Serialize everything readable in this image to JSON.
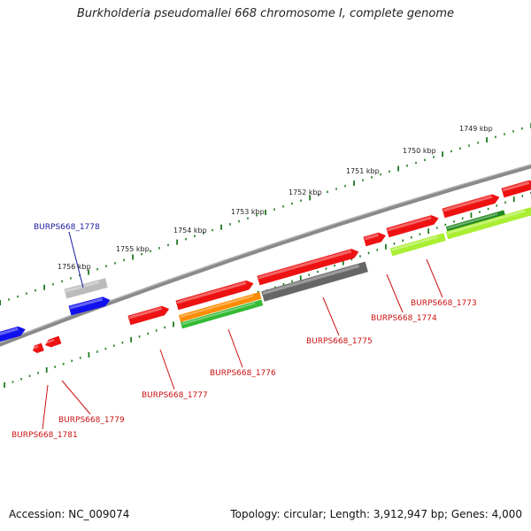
{
  "title": "Burkholderia pseudomallei 668 chromosome I, complete genome",
  "footer": {
    "accession": "Accession: NC_009074",
    "summary": "Topology: circular; Length: 3,912,947 bp; Genes: 4,000"
  },
  "colors": {
    "backbone": "#8a8a8a",
    "tick": "#1f7a1f",
    "red_gene": "#ee1111",
    "blue_gene": "#1111ee",
    "grey_gene": "#bbbbbb",
    "dark_grey_gene": "#666666",
    "orange_gene": "#ff8c00",
    "green_gene": "#33bb33",
    "lime_gene": "#aaee33",
    "dark_green_gene": "#228822",
    "blue_label": "#1a1aa0",
    "red_label": "#cc1111"
  },
  "scale_labels": [
    {
      "name": "kbp-1756",
      "text": "1756 kbp"
    },
    {
      "name": "kbp-1755",
      "text": "1755 kbp"
    },
    {
      "name": "kbp-1754",
      "text": "1754 kbp"
    },
    {
      "name": "kbp-1753",
      "text": "1753 kbp"
    },
    {
      "name": "kbp-1752",
      "text": "1752 kbp"
    },
    {
      "name": "kbp-1751",
      "text": "1751 kbp"
    },
    {
      "name": "kbp-1750",
      "text": "1750 kbp"
    },
    {
      "name": "kbp-1749",
      "text": "1749 kbp"
    }
  ],
  "gene_labels": [
    {
      "name": "BURPS668_1778",
      "text": "BURPS668_1778",
      "color": "blue"
    },
    {
      "name": "BURPS668_1773",
      "text": "BURPS668_1773",
      "color": "red"
    },
    {
      "name": "BURPS668_1774",
      "text": "BURPS668_1774",
      "color": "red"
    },
    {
      "name": "BURPS668_1775",
      "text": "BURPS668_1775",
      "color": "red"
    },
    {
      "name": "BURPS668_1776",
      "text": "BURPS668_1776",
      "color": "red"
    },
    {
      "name": "BURPS668_1777",
      "text": "BURPS668_1777",
      "color": "red"
    },
    {
      "name": "BURPS668_1779",
      "text": "BURPS668_1779",
      "color": "red"
    },
    {
      "name": "BURPS668_1781",
      "text": "BURPS668_1781",
      "color": "red"
    }
  ]
}
